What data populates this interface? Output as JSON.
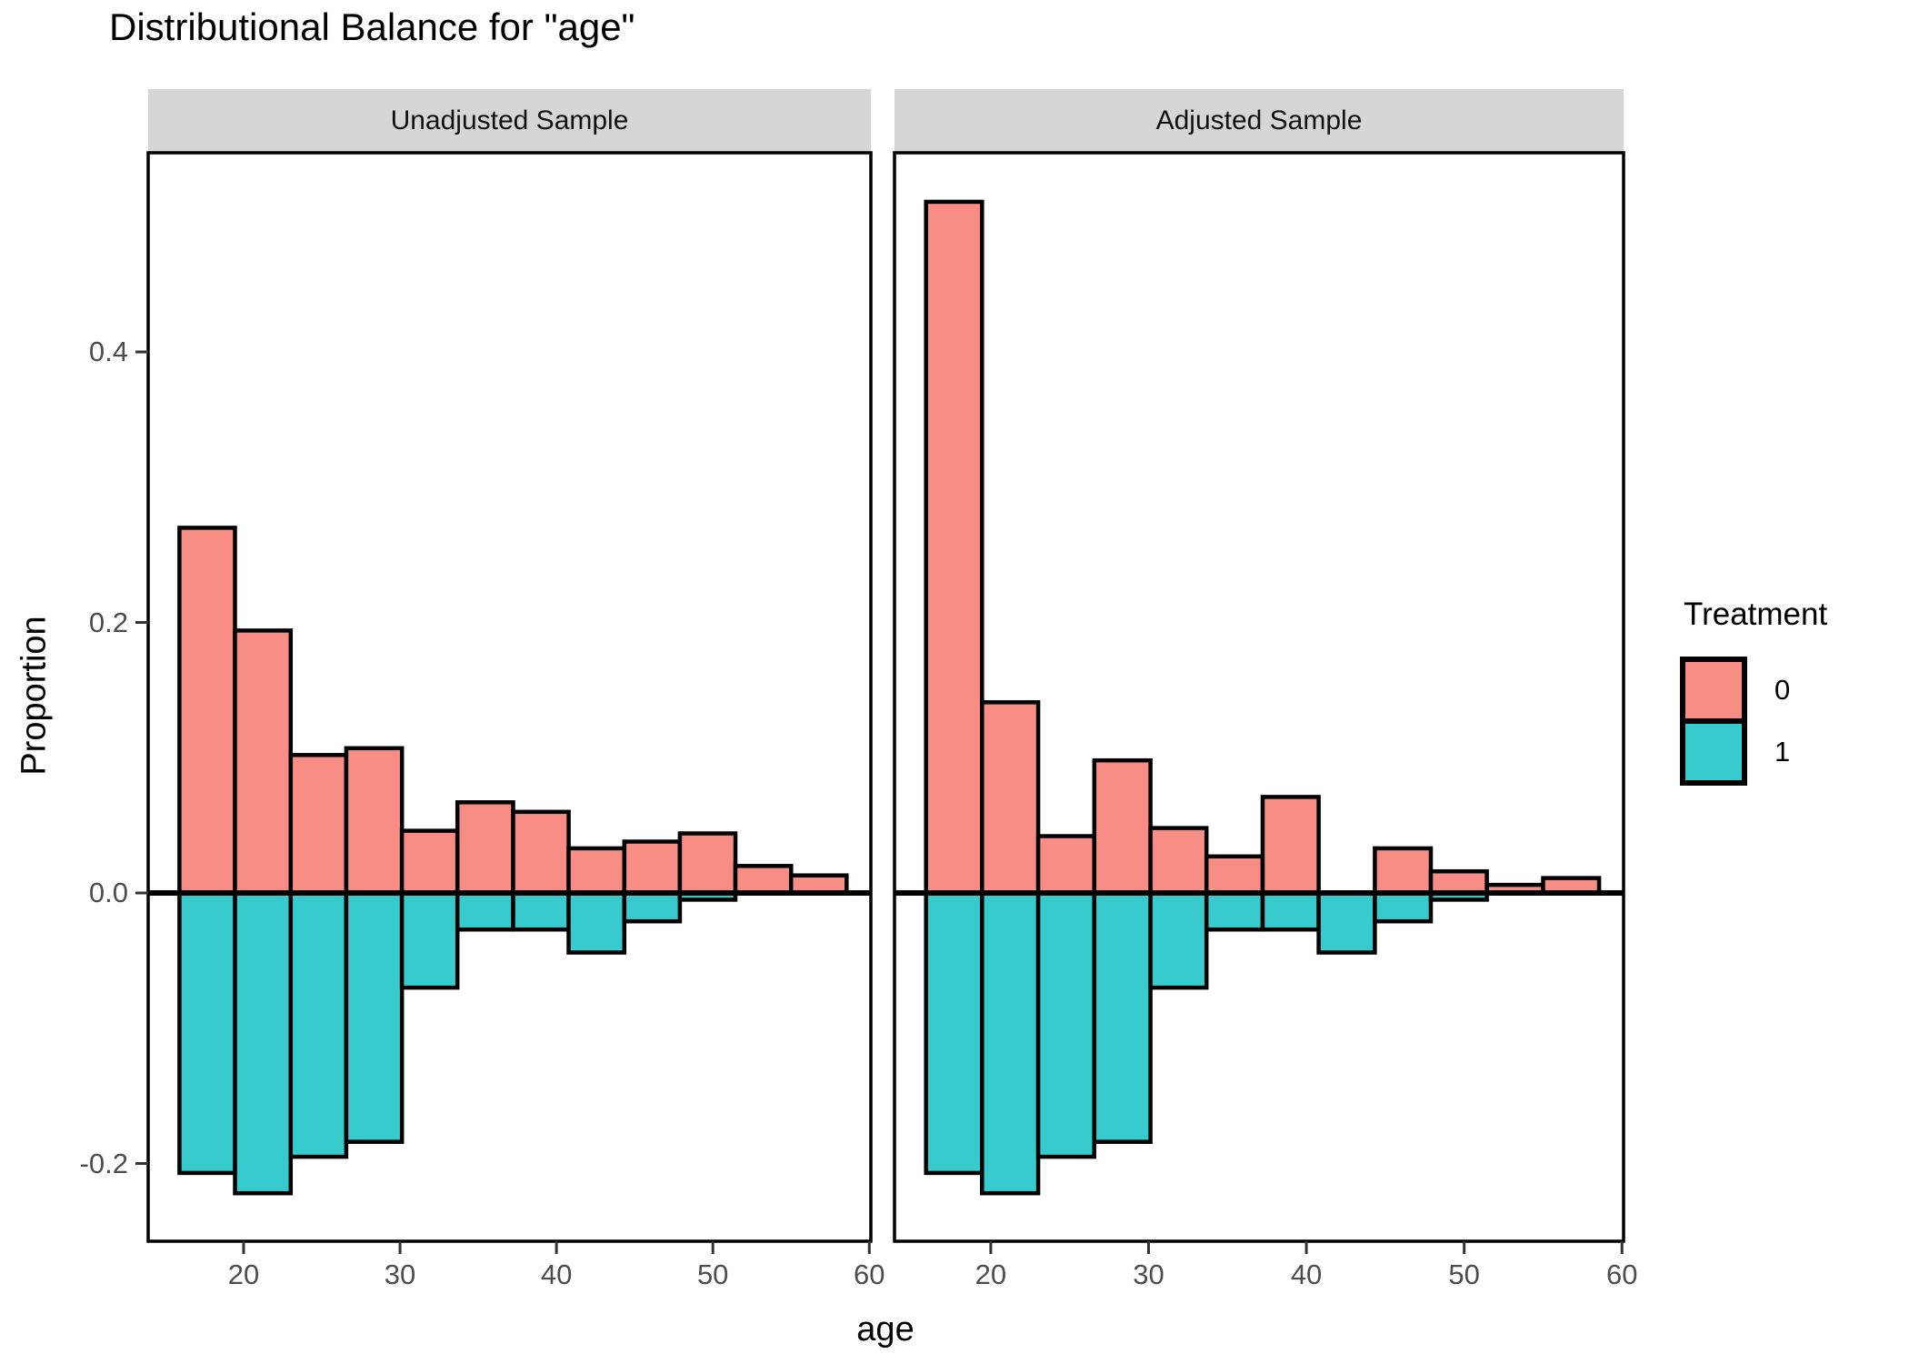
{
  "title": "Distributional Balance for \"age\"",
  "axes": {
    "x_title": "age",
    "y_title": "Proportion",
    "x_ticks": [
      "20",
      "30",
      "40",
      "50",
      "60"
    ],
    "x_tick_values": [
      20,
      30,
      40,
      50,
      60
    ],
    "y_ticks": [
      "0.4",
      "0.2",
      "0.0",
      "-0.2"
    ],
    "y_tick_values": [
      0.4,
      0.2,
      0.0,
      -0.2
    ]
  },
  "legend": {
    "title": "Treatment",
    "items": [
      {
        "label": "0",
        "key": "control"
      },
      {
        "label": "1",
        "key": "treated"
      }
    ]
  },
  "chart_data": {
    "type": "bar",
    "subtype": "back-to-back mirrored histogram (distributional balance plot)",
    "title": "Distributional Balance for \"age\"",
    "xlabel": "age",
    "ylabel": "Proportion",
    "x_domain": [
      13.9,
      60.1
    ],
    "y_domain": [
      -0.2575,
      0.546
    ],
    "grid": false,
    "legend_position": "right",
    "bin_edges": [
      15.9,
      19.45,
      23.01,
      26.56,
      30.12,
      33.67,
      37.23,
      40.78,
      44.34,
      47.89,
      51.44,
      55.0,
      58.55
    ],
    "facets": [
      {
        "label": "Unadjusted Sample",
        "series": [
          {
            "name": "0",
            "treatment": "0",
            "values": [
              0.27,
              0.194,
              0.102,
              0.107,
              0.046,
              0.067,
              0.06,
              0.033,
              0.038,
              0.044,
              0.02,
              0.013
            ]
          },
          {
            "name": "1",
            "treatment": "1",
            "values": [
              -0.207,
              -0.222,
              -0.195,
              -0.184,
              -0.07,
              -0.027,
              -0.027,
              -0.044,
              -0.021,
              -0.005,
              0,
              0
            ]
          }
        ]
      },
      {
        "label": "Adjusted Sample",
        "series": [
          {
            "name": "0",
            "treatment": "0",
            "values": [
              0.511,
              0.141,
              0.042,
              0.098,
              0.048,
              0.027,
              0.071,
              0,
              0.033,
              0.016,
              0.006,
              0.011
            ]
          },
          {
            "name": "1",
            "treatment": "1",
            "values": [
              -0.207,
              -0.222,
              -0.195,
              -0.184,
              -0.07,
              -0.027,
              -0.027,
              -0.044,
              -0.021,
              -0.005,
              0,
              0
            ]
          }
        ]
      }
    ],
    "colors": {
      "control": "#F88D86",
      "treated": "#38CBCE",
      "strip_bg": "#D6D6D6",
      "axis_text": "#4D4D4D",
      "bar_outline": "#000000"
    }
  }
}
